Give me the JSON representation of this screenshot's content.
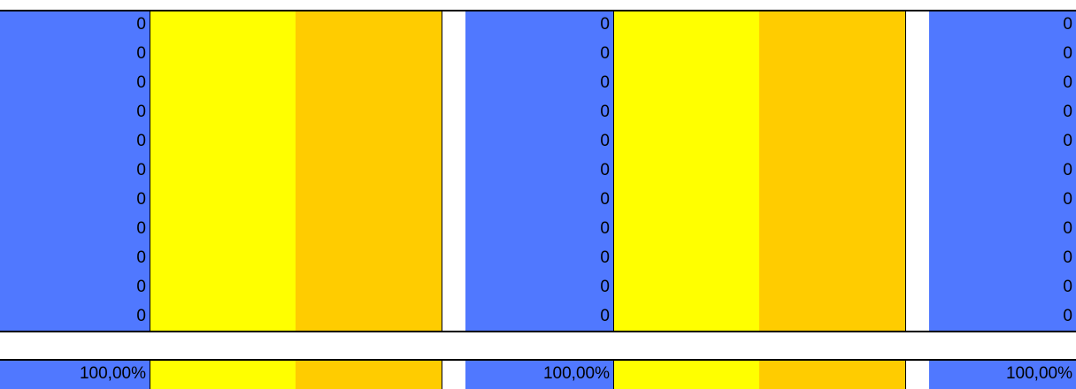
{
  "colors": {
    "blue": "#5078ff",
    "yellow": "#ffff00",
    "orange": "#ffcc00",
    "gap": "#ffffff"
  },
  "groups": [
    {
      "values": [
        "0",
        "0",
        "0",
        "0",
        "0",
        "0",
        "0",
        "0",
        "0",
        "0",
        "0"
      ],
      "percent": "100,00%"
    },
    {
      "values": [
        "0",
        "0",
        "0",
        "0",
        "0",
        "0",
        "0",
        "0",
        "0",
        "0",
        "0"
      ],
      "percent": "100,00%"
    },
    {
      "values": [
        "0",
        "0",
        "0",
        "0",
        "0",
        "0",
        "0",
        "0",
        "0",
        "0",
        "0"
      ],
      "percent": "100,00%"
    }
  ]
}
